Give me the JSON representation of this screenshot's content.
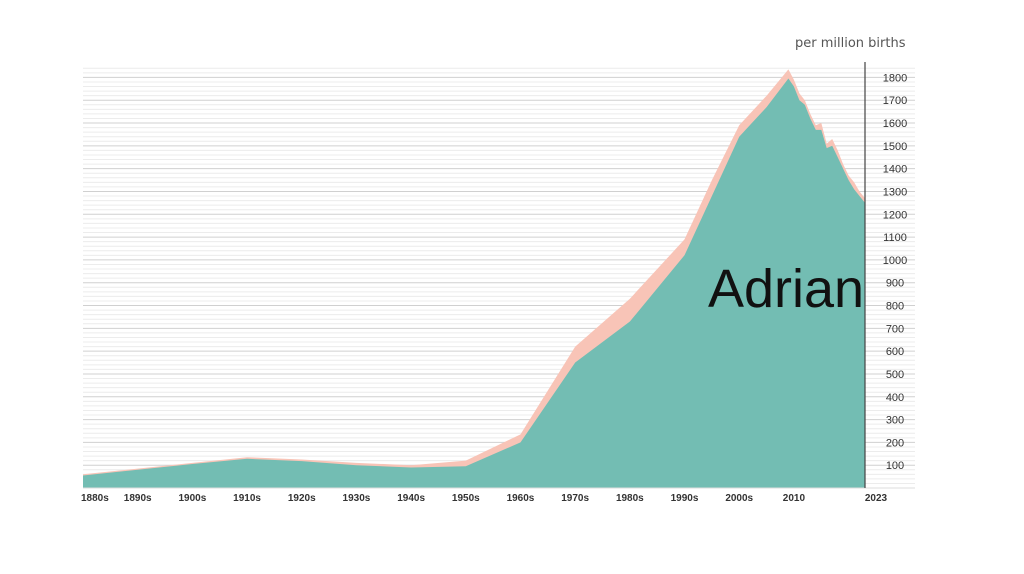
{
  "chart_data": {
    "type": "area",
    "title": "",
    "ylabel": "per million births",
    "name_label": "Adrian",
    "ylim": [
      0,
      1850
    ],
    "yticks": [
      100,
      200,
      300,
      400,
      500,
      600,
      700,
      800,
      900,
      1000,
      1100,
      1200,
      1300,
      1400,
      1500,
      1600,
      1700,
      1800
    ],
    "xlim": [
      1880,
      2023
    ],
    "xtick_values": [
      1880,
      1890,
      1900,
      1910,
      1920,
      1930,
      1940,
      1950,
      1960,
      1970,
      1980,
      1990,
      2000,
      2010,
      2023
    ],
    "xtick_labels": [
      "1880s",
      "1890s",
      "1900s",
      "1910s",
      "1920s",
      "1930s",
      "1940s",
      "1950s",
      "1960s",
      "1970s",
      "1980s",
      "1990s",
      "2000s",
      "2010",
      "2023"
    ],
    "grid": true,
    "colors": {
      "primary": "#73bdb3",
      "secondary": "#f8c4b7",
      "grid": "#d0d0d0",
      "axis": "#444444"
    },
    "series": [
      {
        "role": "total",
        "x": [
          1880,
          1890,
          1900,
          1910,
          1920,
          1930,
          1940,
          1950,
          1960,
          1970,
          1980,
          1990,
          1995,
          2000,
          2005,
          2009,
          2010,
          2011,
          2012,
          2013,
          2014,
          2015,
          2016,
          2017,
          2018,
          2019,
          2020,
          2021,
          2022,
          2023
        ],
        "values": [
          60,
          85,
          110,
          135,
          125,
          110,
          100,
          120,
          235,
          620,
          830,
          1090,
          1350,
          1590,
          1720,
          1835,
          1790,
          1730,
          1700,
          1640,
          1590,
          1600,
          1510,
          1530,
          1480,
          1420,
          1370,
          1340,
          1300,
          1270
        ]
      },
      {
        "role": "primary",
        "x": [
          1880,
          1890,
          1900,
          1910,
          1920,
          1930,
          1940,
          1950,
          1960,
          1970,
          1980,
          1990,
          1995,
          2000,
          2005,
          2009,
          2010,
          2011,
          2012,
          2013,
          2014,
          2015,
          2016,
          2017,
          2018,
          2019,
          2020,
          2021,
          2022,
          2023
        ],
        "values": [
          55,
          80,
          105,
          128,
          118,
          100,
          90,
          95,
          200,
          550,
          730,
          1020,
          1280,
          1540,
          1670,
          1795,
          1760,
          1700,
          1680,
          1620,
          1570,
          1570,
          1490,
          1500,
          1450,
          1400,
          1350,
          1310,
          1280,
          1250
        ]
      }
    ]
  }
}
